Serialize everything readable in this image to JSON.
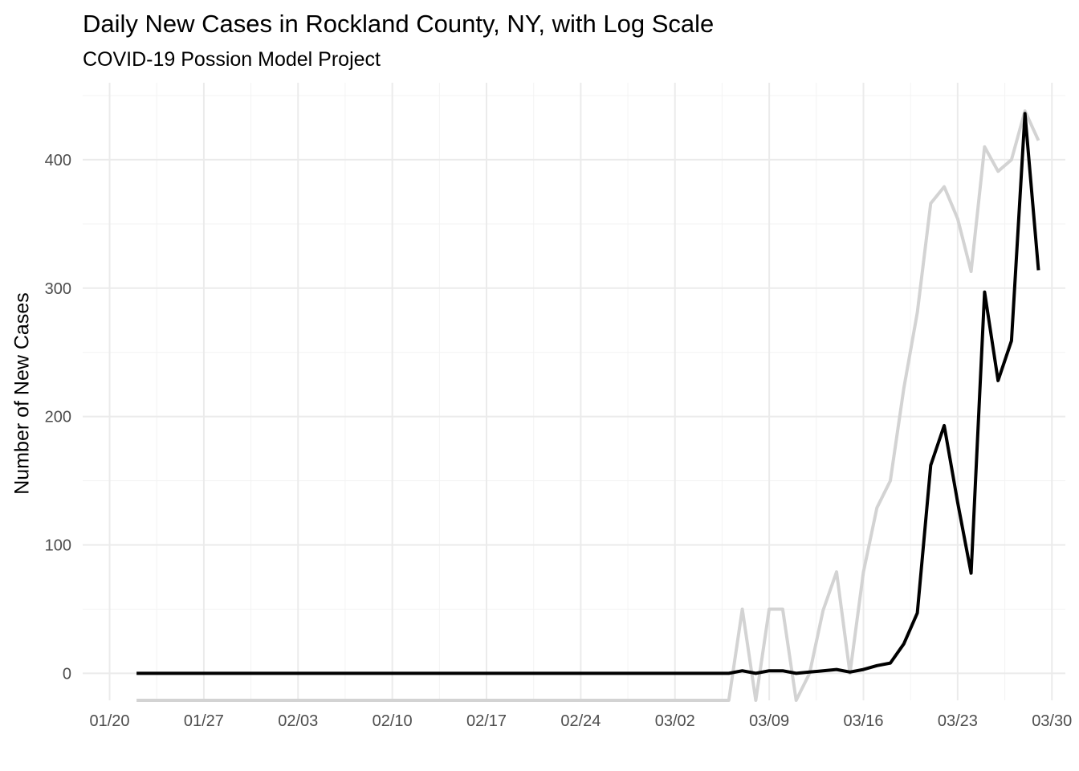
{
  "chart_data": {
    "type": "line",
    "title": "Daily New Cases in Rockland County, NY, with Log Scale",
    "subtitle": "COVID-19 Possion Model Project",
    "xlabel": "",
    "ylabel": "Number of New Cases",
    "x_ticks": [
      "01/20",
      "01/27",
      "02/03",
      "02/10",
      "02/17",
      "02/24",
      "03/02",
      "03/09",
      "03/16",
      "03/23",
      "03/30"
    ],
    "y_ticks": [
      "0",
      "100",
      "200",
      "300",
      "400"
    ],
    "xlim": [
      "2020-01-18",
      "2020-03-31"
    ],
    "ylim": [
      -21,
      460
    ],
    "grid": true,
    "legend": "none",
    "series": [
      {
        "color": "#d3d3d3",
        "points": [
          [
            "2020-01-22",
            -21
          ],
          [
            "2020-03-06",
            -21
          ],
          [
            "2020-03-07",
            50
          ],
          [
            "2020-03-08",
            -21
          ],
          [
            "2020-03-09",
            50
          ],
          [
            "2020-03-10",
            50
          ],
          [
            "2020-03-11",
            -21
          ],
          [
            "2020-03-12",
            0
          ],
          [
            "2020-03-13",
            49
          ],
          [
            "2020-03-14",
            79
          ],
          [
            "2020-03-15",
            0
          ],
          [
            "2020-03-16",
            79
          ],
          [
            "2020-03-17",
            129
          ],
          [
            "2020-03-18",
            150
          ],
          [
            "2020-03-19",
            222
          ],
          [
            "2020-03-20",
            281
          ],
          [
            "2020-03-21",
            366
          ],
          [
            "2020-03-22",
            379
          ],
          [
            "2020-03-23",
            354
          ],
          [
            "2020-03-24",
            313
          ],
          [
            "2020-03-25",
            410
          ],
          [
            "2020-03-26",
            391
          ],
          [
            "2020-03-27",
            400
          ],
          [
            "2020-03-28",
            438
          ],
          [
            "2020-03-29",
            415
          ]
        ]
      },
      {
        "color": "#000000",
        "points": [
          [
            "2020-01-22",
            0
          ],
          [
            "2020-03-06",
            0
          ],
          [
            "2020-03-07",
            2
          ],
          [
            "2020-03-08",
            0
          ],
          [
            "2020-03-09",
            2
          ],
          [
            "2020-03-10",
            2
          ],
          [
            "2020-03-11",
            0
          ],
          [
            "2020-03-12",
            1
          ],
          [
            "2020-03-13",
            2
          ],
          [
            "2020-03-14",
            3
          ],
          [
            "2020-03-15",
            1
          ],
          [
            "2020-03-16",
            3
          ],
          [
            "2020-03-17",
            6
          ],
          [
            "2020-03-18",
            8
          ],
          [
            "2020-03-19",
            23
          ],
          [
            "2020-03-20",
            47
          ],
          [
            "2020-03-21",
            162
          ],
          [
            "2020-03-22",
            193
          ],
          [
            "2020-03-23",
            133
          ],
          [
            "2020-03-24",
            78
          ],
          [
            "2020-03-25",
            297
          ],
          [
            "2020-03-26",
            228
          ],
          [
            "2020-03-27",
            259
          ],
          [
            "2020-03-28",
            436
          ],
          [
            "2020-03-29",
            314
          ]
        ]
      }
    ]
  }
}
